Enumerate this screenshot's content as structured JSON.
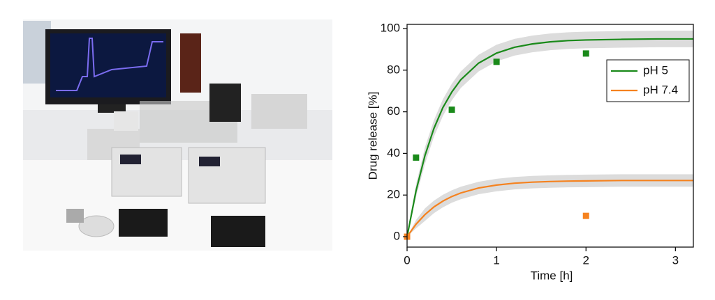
{
  "chart_data": {
    "type": "line",
    "xlabel": "Time [h]",
    "ylabel": "Drug release [%]",
    "x": [
      0,
      0.1,
      0.2,
      0.3,
      0.4,
      0.5,
      0.6,
      0.8,
      1.0,
      1.2,
      1.4,
      1.6,
      1.8,
      2.0,
      2.4,
      2.8,
      3.2
    ],
    "series": [
      {
        "name": "pH 5",
        "color": "#1a8a1a",
        "values": [
          0,
          22,
          39,
          52,
          62,
          69.5,
          75.4,
          83.4,
          88.2,
          91,
          92.6,
          93.6,
          94.2,
          94.5,
          94.8,
          95,
          95
        ],
        "errors": [
          0,
          3,
          4,
          4,
          4,
          4,
          4,
          4,
          4,
          4,
          4,
          4,
          4,
          4,
          4,
          4,
          4
        ],
        "points": {
          "x": [
            0.1,
            0.5,
            1,
            2
          ],
          "values": [
            38,
            61,
            84,
            88
          ]
        }
      },
      {
        "name": "pH 7.4",
        "color": "#f5821f",
        "values": [
          0,
          6,
          10.6,
          14.3,
          17.1,
          19.3,
          21,
          23.4,
          24.8,
          25.7,
          26.2,
          26.5,
          26.7,
          26.8,
          27,
          27,
          27
        ],
        "errors": [
          0,
          2,
          3,
          3,
          3,
          3,
          3,
          3,
          3,
          3,
          3,
          3,
          3,
          3,
          3,
          3,
          3
        ],
        "points": {
          "x": [
            0,
            2
          ],
          "values": [
            0,
            10
          ]
        }
      }
    ],
    "xlim": [
      0,
      3.2
    ],
    "xticks": [
      0,
      1,
      2,
      3
    ],
    "ylim": [
      -5,
      102
    ],
    "yticks": [
      0,
      20,
      40,
      60,
      80,
      100
    ],
    "band_color": "#d3d3d3",
    "legend": "upper right"
  }
}
